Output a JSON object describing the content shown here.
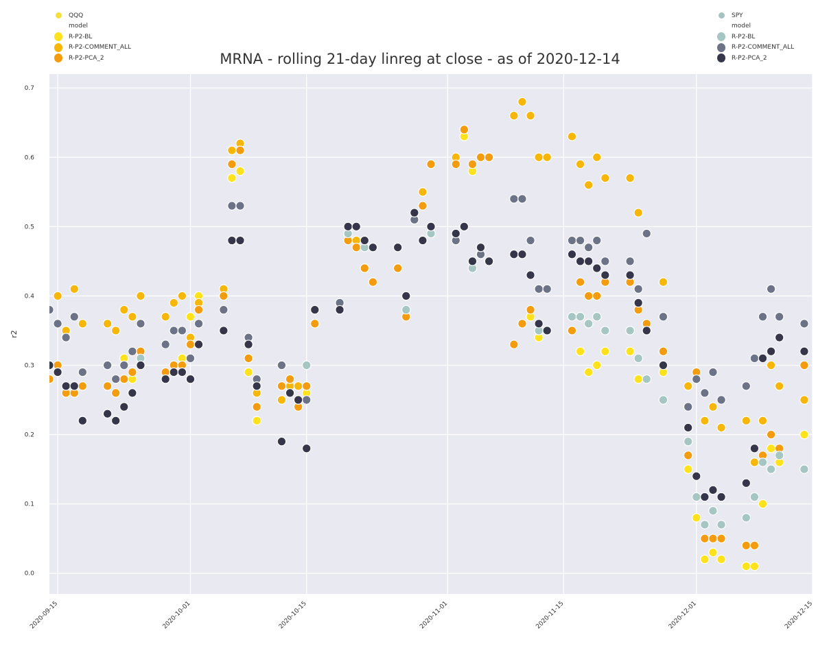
{
  "chart_data": {
    "type": "scatter",
    "title": "MRNA - rolling 21-day linreg at close - as of 2020-12-14",
    "ylabel": "r2",
    "xlabel": "",
    "xlim": [
      "2020-09-14",
      "2020-12-15"
    ],
    "ylim": [
      -0.03,
      0.72
    ],
    "x_ticks": [
      "2020-09-15",
      "2020-10-01",
      "2020-10-15",
      "2020-11-01",
      "2020-11-15",
      "2020-12-01",
      "2020-12-15"
    ],
    "y_ticks": [
      "0.0",
      "0.1",
      "0.2",
      "0.3",
      "0.4",
      "0.5",
      "0.6",
      "0.7"
    ],
    "background": "#e9e9f1",
    "grid": true,
    "legends": [
      {
        "position": "upper-left",
        "group_title": "QQQ",
        "group_color": "#f5df3a",
        "subtitle": "model",
        "entries": [
          {
            "label": "R-P2-BL",
            "color": "#fee21d"
          },
          {
            "label": "R-P2-COMMENT_ALL",
            "color": "#f7b60a"
          },
          {
            "label": "R-P2-PCA_2",
            "color": "#f39c0f"
          }
        ]
      },
      {
        "position": "upper-right",
        "group_title": "SPY",
        "group_color": "#a6c3bf",
        "subtitle": "model",
        "entries": [
          {
            "label": "R-P2-BL",
            "color": "#a5c6c2"
          },
          {
            "label": "R-P2-COMMENT_ALL",
            "color": "#6c7386"
          },
          {
            "label": "R-P2-PCA_2",
            "color": "#36364a"
          }
        ]
      }
    ],
    "dates": [
      "2020-09-14",
      "2020-09-15",
      "2020-09-16",
      "2020-09-17",
      "2020-09-18",
      "2020-09-21",
      "2020-09-22",
      "2020-09-23",
      "2020-09-24",
      "2020-09-25",
      "2020-09-28",
      "2020-09-29",
      "2020-09-30",
      "2020-10-01",
      "2020-10-02",
      "2020-10-05",
      "2020-10-06",
      "2020-10-07",
      "2020-10-08",
      "2020-10-09",
      "2020-10-12",
      "2020-10-13",
      "2020-10-14",
      "2020-10-15",
      "2020-10-16",
      "2020-10-19",
      "2020-10-20",
      "2020-10-21",
      "2020-10-22",
      "2020-10-23",
      "2020-10-26",
      "2020-10-27",
      "2020-10-28",
      "2020-10-29",
      "2020-10-30",
      "2020-11-02",
      "2020-11-03",
      "2020-11-04",
      "2020-11-05",
      "2020-11-06",
      "2020-11-09",
      "2020-11-10",
      "2020-11-11",
      "2020-11-12",
      "2020-11-13",
      "2020-11-16",
      "2020-11-17",
      "2020-11-18",
      "2020-11-19",
      "2020-11-20",
      "2020-11-23",
      "2020-11-24",
      "2020-11-25",
      "2020-11-27",
      "2020-11-30",
      "2020-12-01",
      "2020-12-02",
      "2020-12-03",
      "2020-12-04",
      "2020-12-07",
      "2020-12-08",
      "2020-12-09",
      "2020-12-10",
      "2020-12-11",
      "2020-12-14"
    ],
    "series": [
      {
        "group": "QQQ",
        "model": "R-P2-BL",
        "color": "#fee21d",
        "values": [
          0.28,
          0.29,
          0.35,
          0.26,
          0.36,
          0.27,
          0.26,
          0.31,
          0.28,
          0.31,
          0.28,
          0.29,
          0.31,
          0.37,
          0.4,
          0.4,
          0.57,
          0.58,
          0.29,
          0.22,
          0.25,
          0.27,
          0.25,
          0.26,
          0.36,
          0.38,
          0.49,
          0.48,
          0.44,
          0.42,
          0.44,
          0.37,
          0.51,
          0.55,
          0.59,
          0.59,
          0.63,
          0.58,
          0.6,
          0.6,
          0.33,
          0.36,
          0.37,
          0.34,
          0.35,
          0.35,
          0.32,
          0.29,
          0.3,
          0.32,
          0.32,
          0.28,
          0.35,
          0.29,
          0.15,
          0.08,
          0.02,
          0.03,
          0.02,
          0.01,
          0.01,
          0.1,
          0.18,
          0.16,
          0.2
        ]
      },
      {
        "group": "QQQ",
        "model": "R-P2-COMMENT_ALL",
        "color": "#f7b60a",
        "values": [
          0.28,
          0.4,
          0.35,
          0.41,
          0.36,
          0.36,
          0.35,
          0.38,
          0.37,
          0.4,
          0.37,
          0.39,
          0.4,
          0.34,
          0.39,
          0.41,
          0.61,
          0.62,
          0.31,
          0.26,
          0.25,
          0.27,
          0.27,
          0.27,
          0.36,
          0.38,
          0.48,
          0.48,
          0.44,
          0.42,
          0.44,
          0.37,
          0.51,
          0.55,
          0.59,
          0.6,
          0.64,
          0.59,
          0.6,
          0.6,
          0.66,
          0.68,
          0.66,
          0.6,
          0.6,
          0.63,
          0.59,
          0.56,
          0.6,
          0.57,
          0.57,
          0.52,
          0.35,
          0.42,
          0.27,
          0.28,
          0.22,
          0.24,
          0.21,
          0.22,
          0.16,
          0.22,
          0.3,
          0.27,
          0.25
        ]
      },
      {
        "group": "QQQ",
        "model": "R-P2-PCA_2",
        "color": "#f39c0f",
        "values": [
          0.28,
          0.3,
          0.26,
          0.26,
          0.27,
          0.27,
          0.26,
          0.28,
          0.29,
          0.32,
          0.29,
          0.3,
          0.3,
          0.33,
          0.38,
          0.4,
          0.59,
          0.61,
          0.31,
          0.24,
          0.27,
          0.28,
          0.24,
          0.27,
          0.36,
          0.38,
          0.48,
          0.47,
          0.44,
          0.42,
          0.44,
          0.37,
          0.51,
          0.53,
          0.59,
          0.59,
          0.64,
          0.59,
          0.6,
          0.6,
          0.33,
          0.36,
          0.38,
          0.35,
          0.35,
          0.35,
          0.42,
          0.4,
          0.4,
          0.42,
          0.42,
          0.38,
          0.36,
          0.32,
          0.17,
          0.29,
          0.05,
          0.05,
          0.05,
          0.04,
          0.04,
          0.17,
          0.2,
          0.18,
          0.3
        ]
      },
      {
        "group": "SPY",
        "model": "R-P2-BL",
        "color": "#a5c6c2",
        "values": [
          0.3,
          0.29,
          0.27,
          0.27,
          0.22,
          0.23,
          0.22,
          0.24,
          0.26,
          0.31,
          0.28,
          0.29,
          0.29,
          0.28,
          0.33,
          0.35,
          0.48,
          0.48,
          0.33,
          0.27,
          0.19,
          0.26,
          0.25,
          0.3,
          0.38,
          0.39,
          0.49,
          0.5,
          0.47,
          0.47,
          0.47,
          0.38,
          0.51,
          0.48,
          0.49,
          0.48,
          0.5,
          0.44,
          0.46,
          0.45,
          0.46,
          0.46,
          0.43,
          0.35,
          0.35,
          0.37,
          0.37,
          0.36,
          0.37,
          0.35,
          0.35,
          0.31,
          0.28,
          0.25,
          0.19,
          0.11,
          0.07,
          0.09,
          0.07,
          0.08,
          0.11,
          0.16,
          0.15,
          0.17,
          0.15
        ]
      },
      {
        "group": "SPY",
        "model": "R-P2-COMMENT_ALL",
        "color": "#6c7386",
        "values": [
          0.38,
          0.36,
          0.34,
          0.37,
          0.29,
          0.3,
          0.28,
          0.3,
          0.32,
          0.36,
          0.33,
          0.35,
          0.35,
          0.31,
          0.36,
          0.38,
          0.53,
          0.53,
          0.34,
          0.28,
          0.3,
          0.26,
          0.25,
          0.25,
          0.38,
          0.39,
          0.5,
          0.5,
          0.48,
          0.47,
          0.47,
          0.4,
          0.51,
          0.48,
          0.5,
          0.48,
          0.5,
          0.45,
          0.46,
          0.45,
          0.54,
          0.54,
          0.48,
          0.41,
          0.41,
          0.48,
          0.48,
          0.47,
          0.48,
          0.45,
          0.45,
          0.41,
          0.49,
          0.37,
          0.24,
          0.28,
          0.26,
          0.29,
          0.25,
          0.27,
          0.31,
          0.37,
          0.41,
          0.37,
          0.36
        ]
      },
      {
        "group": "SPY",
        "model": "R-P2-PCA_2",
        "color": "#36364a",
        "values": [
          0.3,
          0.29,
          0.27,
          0.27,
          0.22,
          0.23,
          0.22,
          0.24,
          0.26,
          0.3,
          0.28,
          0.29,
          0.29,
          0.28,
          0.33,
          0.35,
          0.48,
          0.48,
          0.33,
          0.27,
          0.19,
          0.26,
          0.25,
          0.18,
          0.38,
          0.38,
          0.5,
          0.5,
          0.48,
          0.47,
          0.47,
          0.4,
          0.52,
          0.48,
          0.5,
          0.49,
          0.5,
          0.45,
          0.47,
          0.45,
          0.46,
          0.46,
          0.43,
          0.36,
          0.35,
          0.46,
          0.45,
          0.45,
          0.44,
          0.43,
          0.43,
          0.39,
          0.35,
          0.3,
          0.21,
          0.14,
          0.11,
          0.12,
          0.11,
          0.13,
          0.18,
          0.31,
          0.32,
          0.34,
          0.32
        ]
      }
    ]
  }
}
